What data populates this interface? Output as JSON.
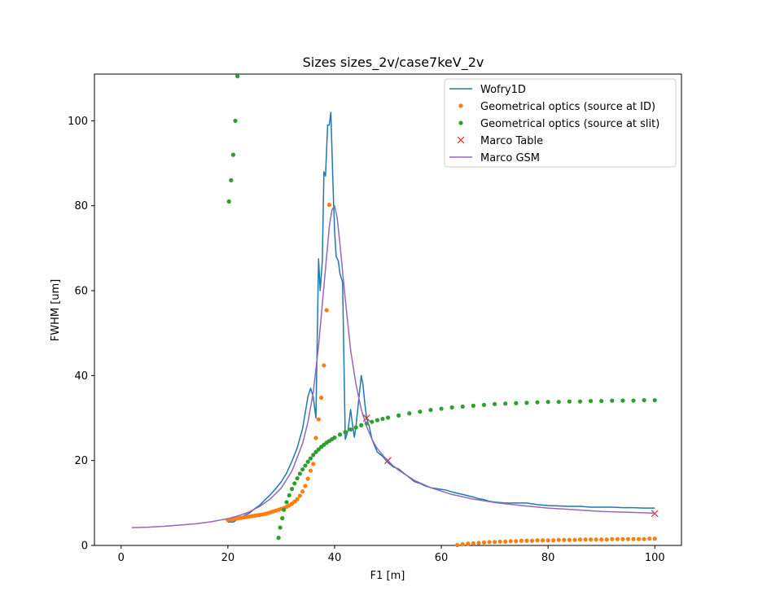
{
  "chart_data": {
    "type": "line",
    "title": "Sizes sizes_2v/case7keV_2v",
    "xlabel": "F1 [m]",
    "ylabel": "FWHM [um]",
    "xlim": [
      -5,
      105
    ],
    "ylim": [
      0,
      111
    ],
    "xticks": [
      0,
      20,
      40,
      60,
      80,
      100
    ],
    "yticks": [
      0,
      20,
      40,
      60,
      80,
      100
    ],
    "grid": false,
    "legend_position": "top-right",
    "series": [
      {
        "name": "Wofry1D",
        "kind": "line",
        "color": "#1f77b4",
        "x": [
          20,
          21,
          22,
          23,
          24,
          25,
          26,
          27,
          28,
          29,
          30,
          31,
          32,
          33,
          34,
          35,
          35.5,
          36,
          36.5,
          37,
          37.3,
          37.7,
          38,
          38.3,
          38.7,
          39,
          39.3,
          39.7,
          40,
          40.3,
          40.7,
          41,
          41.5,
          42,
          42.5,
          43,
          43.3,
          43.7,
          44,
          44.5,
          45,
          45.3,
          45.7,
          46,
          46.5,
          47,
          47.5,
          48,
          49,
          50,
          51,
          52,
          53,
          54,
          55,
          56,
          57,
          58,
          59,
          60,
          61,
          62,
          63,
          64,
          65,
          66,
          67,
          68,
          69,
          70,
          72,
          74,
          76,
          78,
          80,
          82,
          84,
          86,
          88,
          90,
          92,
          94,
          96,
          98,
          100
        ],
        "y": [
          5.5,
          5.5,
          6.3,
          7,
          7.6,
          8.6,
          9.5,
          10.8,
          12,
          13.4,
          15,
          17,
          19.8,
          23,
          27.5,
          35,
          37,
          35,
          30,
          67.5,
          60,
          67,
          88,
          87,
          99,
          99,
          102,
          85,
          74,
          68,
          67,
          64,
          62,
          25,
          27,
          32,
          29,
          25.5,
          28,
          34,
          40,
          38,
          33,
          30,
          28,
          25,
          23.5,
          22,
          21,
          19.5,
          18.5,
          18,
          17,
          16,
          15,
          14.6,
          14,
          13.6,
          13.4,
          13.2,
          13,
          12.6,
          12.3,
          12,
          11.7,
          11.4,
          11,
          10.8,
          10.4,
          10.2,
          10,
          10,
          10,
          9.6,
          9.4,
          9.3,
          9.2,
          9.2,
          9,
          9,
          9,
          8.9,
          8.9,
          8.8,
          8.8
        ]
      },
      {
        "name": "Geometrical optics (source at ID)",
        "kind": "scatter",
        "color": "#ff7f0e",
        "x": [
          20,
          20.5,
          21,
          21.5,
          22,
          22.5,
          23,
          23.5,
          24,
          24.5,
          25,
          25.5,
          26,
          26.5,
          27,
          27.5,
          28,
          28.5,
          29,
          29.5,
          30,
          30.5,
          31,
          31.5,
          32,
          32.5,
          33,
          33.5,
          34,
          34.5,
          35,
          35.5,
          36,
          36.5,
          37,
          37.5,
          38,
          38.5,
          39,
          63,
          64,
          65,
          66,
          67,
          68,
          69,
          70,
          71,
          72,
          73,
          74,
          75,
          76,
          77,
          78,
          79,
          80,
          81,
          82,
          83,
          84,
          85,
          86,
          87,
          88,
          89,
          90,
          91,
          92,
          93,
          94,
          95,
          96,
          97,
          98,
          99,
          100
        ],
        "y": [
          6,
          6.1,
          6.2,
          6.3,
          6.4,
          6.5,
          6.6,
          6.7,
          6.8,
          6.9,
          7,
          7.1,
          7.2,
          7.3,
          7.4,
          7.6,
          7.8,
          8,
          8.2,
          8.4,
          8.6,
          8.8,
          9.1,
          9.4,
          9.8,
          10.3,
          10.9,
          11.7,
          12.7,
          14,
          15.7,
          17.6,
          19.2,
          25.3,
          29.7,
          34.8,
          42.4,
          55.4,
          80.2,
          0.1,
          0.3,
          0.4,
          0.5,
          0.6,
          0.7,
          0.8,
          0.8,
          0.9,
          0.9,
          1,
          1,
          1.1,
          1.1,
          1.1,
          1.2,
          1.2,
          1.2,
          1.2,
          1.3,
          1.3,
          1.3,
          1.3,
          1.4,
          1.4,
          1.4,
          1.4,
          1.4,
          1.4,
          1.5,
          1.5,
          1.5,
          1.5,
          1.5,
          1.5,
          1.5,
          1.6,
          1.6
        ]
      },
      {
        "name": "Geometrical optics (source at slit)",
        "kind": "scatter",
        "color": "#2ca02c",
        "x": [
          20.2,
          20.6,
          21,
          21.4,
          21.8,
          29.5,
          29.8,
          30.2,
          30.5,
          31,
          31.5,
          32,
          32.5,
          33,
          33.5,
          34,
          34.5,
          35,
          35.5,
          36,
          36.5,
          37,
          37.5,
          38,
          38.5,
          39,
          39.5,
          40,
          41,
          42,
          43,
          44,
          45,
          46,
          47,
          48,
          49,
          50,
          52,
          54,
          56,
          58,
          60,
          62,
          64,
          66,
          68,
          70,
          72,
          74,
          76,
          78,
          80,
          82,
          84,
          86,
          88,
          90,
          92,
          94,
          96,
          98,
          100
        ],
        "y": [
          81,
          86,
          92,
          100,
          110.5,
          1.8,
          4.2,
          6.4,
          8.4,
          10.2,
          11.8,
          13.3,
          14.6,
          15.8,
          16.9,
          17.9,
          18.8,
          19.7,
          20.5,
          21.3,
          22,
          22.6,
          23.2,
          23.7,
          24.2,
          24.6,
          25,
          25.4,
          26.1,
          26.7,
          27.3,
          27.8,
          28.3,
          28.7,
          29.1,
          29.5,
          29.8,
          30.1,
          30.6,
          31.1,
          31.5,
          31.9,
          32.2,
          32.5,
          32.7,
          32.9,
          33.1,
          33.3,
          33.4,
          33.5,
          33.6,
          33.7,
          33.8,
          33.8,
          33.9,
          33.9,
          34,
          34,
          34.1,
          34.1,
          34.1,
          34.2,
          34.2
        ]
      },
      {
        "name": "Marco Table",
        "kind": "marker-x",
        "color": "#d62728",
        "x": [
          46,
          50,
          100
        ],
        "y": [
          30,
          20,
          7.5
        ]
      },
      {
        "name": "Marco GSM",
        "kind": "line",
        "color": "#9467bd",
        "x": [
          2,
          5,
          8,
          11,
          14,
          17,
          20,
          22,
          24,
          26,
          28,
          30,
          32,
          34,
          35,
          36,
          37,
          38,
          38.5,
          39,
          39.5,
          40,
          40.5,
          41,
          42,
          43,
          44,
          45,
          46,
          47,
          48,
          50,
          52,
          55,
          58,
          62,
          66,
          70,
          75,
          80,
          85,
          90,
          95,
          100
        ],
        "y": [
          4.2,
          4.3,
          4.5,
          4.8,
          5.1,
          5.6,
          6.3,
          7,
          7.9,
          9.2,
          11,
          13.5,
          17.5,
          24,
          29,
          36,
          47,
          61,
          68,
          75,
          79,
          80,
          77,
          71,
          58,
          46,
          38,
          32,
          28,
          25,
          22.8,
          19.8,
          17.7,
          15.3,
          13.6,
          12,
          10.9,
          10.1,
          9.4,
          8.8,
          8.4,
          8,
          7.8,
          7.6
        ]
      }
    ]
  }
}
